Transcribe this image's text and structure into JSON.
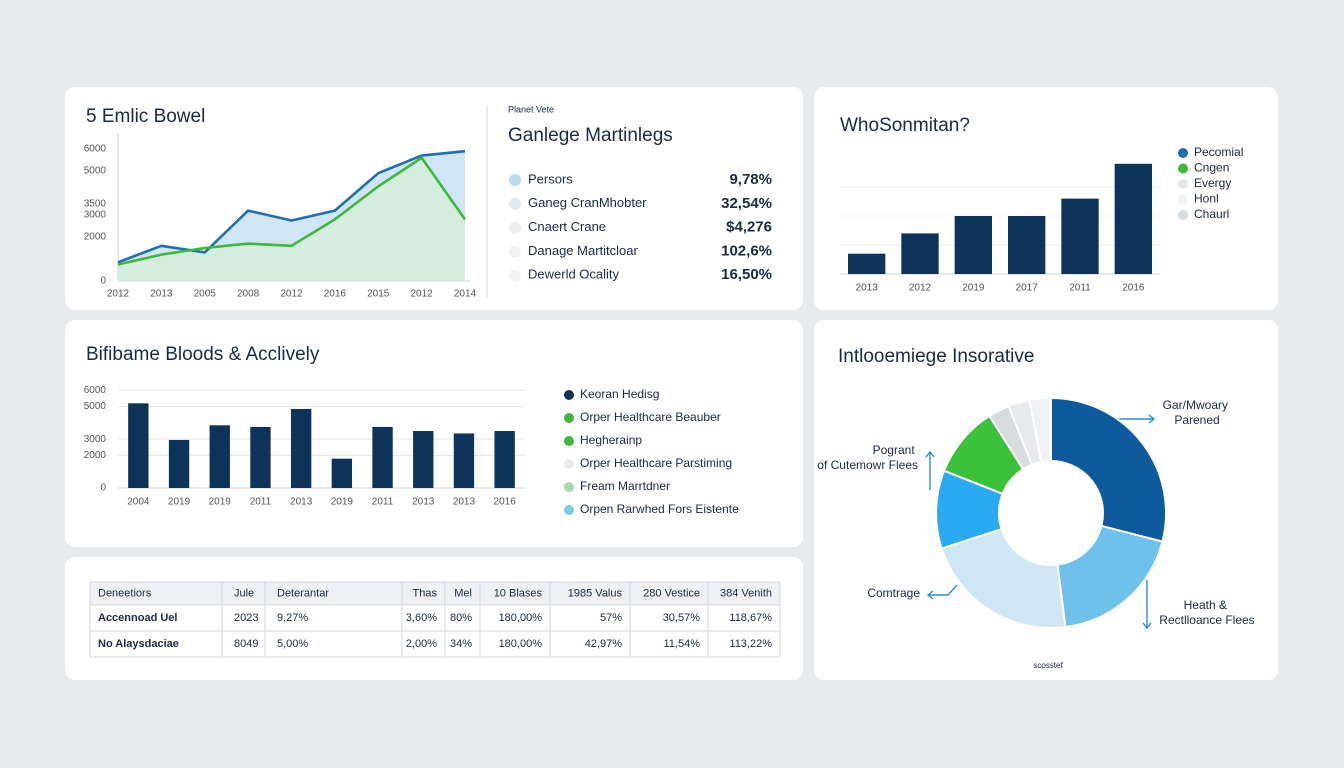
{
  "chart_data": [
    {
      "type": "line",
      "title": "5 Emlic Bowel",
      "categories": [
        "2012",
        "2013",
        "2005",
        "2008",
        "2012",
        "2016",
        "2015",
        "2012",
        "2014"
      ],
      "series": [
        {
          "color": "#1f6fb2",
          "values": [
            850,
            1600,
            1300,
            3200,
            2750,
            3200,
            4900,
            5700,
            5900
          ]
        },
        {
          "color": "#3cb83a",
          "values": [
            750,
            1200,
            1500,
            1700,
            1600,
            2800,
            4300,
            5600,
            2800
          ]
        }
      ],
      "ylim": [
        0,
        6500
      ],
      "yticks": [
        0,
        2000,
        3000,
        3500,
        5000,
        6000
      ],
      "grid": false
    },
    {
      "type": "bar",
      "title": "WhoSonmitan?",
      "categories": [
        "2013",
        "2012",
        "2019",
        "2017",
        "2011",
        "2016"
      ],
      "values": [
        21,
        42,
        60,
        60,
        78,
        114
      ],
      "color": "#0d3358",
      "ylim": [
        0,
        120
      ],
      "legend": [
        {
          "name": "Pecomial",
          "color": "#1f6fb2"
        },
        {
          "name": "Cngen",
          "color": "#3cb83a"
        },
        {
          "name": "Evergy",
          "color": "#e6e9ec"
        },
        {
          "name": "Honl",
          "color": "#f2f3f5"
        },
        {
          "name": "Chaurl",
          "color": "#d6dde3"
        }
      ]
    },
    {
      "type": "bar",
      "title": "Bifibame Bloods & Acclively",
      "categories": [
        "2004",
        "2019",
        "2019",
        "2011",
        "2013",
        "2019",
        "2011",
        "2013",
        "2013",
        "2016"
      ],
      "values": [
        5200,
        2950,
        3850,
        3750,
        4850,
        1800,
        3750,
        3500,
        3350,
        3500
      ],
      "color": "#0d3358",
      "ylim": [
        0,
        7000
      ],
      "yticks": [
        0,
        2000,
        3000,
        5000,
        6000
      ],
      "grid": true,
      "legend": [
        {
          "name": "Keoran Hedisg",
          "color": "#0d3358"
        },
        {
          "name": "Orper Healthcare Beauber",
          "color": "#3cb83a"
        },
        {
          "name": "Hegherainp",
          "color": "#3cb83a"
        },
        {
          "name": "Orper Healthcare Parstiming",
          "color": "#e9ecef"
        },
        {
          "name": "Fream Marrtdner",
          "color": "#a8d8b0"
        },
        {
          "name": "Orpen Rarwhed Fors Eistente",
          "color": "#7ccbe6"
        }
      ]
    },
    {
      "type": "pie",
      "title": "Intlooemiege Insorative",
      "values": [
        29,
        19,
        22,
        11,
        10,
        3,
        3,
        3
      ],
      "colors": [
        "#0e5a9c",
        "#6ec1ea",
        "#cfe7f4",
        "#29aaf1",
        "#3cc13b",
        "#d9dcdf",
        "#e7e9ec",
        "#f0f2f4"
      ],
      "annotations": [
        "Gar/Mwoary Parened",
        "Pogrant of Cutemowr Flees",
        "Comtrage",
        "Heath & Rectlloance Flees",
        "scosstef"
      ]
    }
  ],
  "metrics": {
    "caption": "Planet Vete",
    "title": "Ganlege Martinlegs",
    "rows": [
      [
        "Persors",
        "9,78%"
      ],
      [
        "Ganeg CranMhobter",
        "32,54%"
      ],
      [
        "Cnaert Crane",
        "$4,276"
      ],
      [
        "Danage Martitcloar",
        "102,6%"
      ],
      [
        "Dewerld Ocality",
        "16,50%"
      ]
    ]
  },
  "table": {
    "header": [
      "Deneetiors",
      "Jule",
      "Deterantar",
      "Thas",
      "Mel",
      "10 Blases",
      "1985 Valus",
      "280 Vestice",
      "384 Venith"
    ],
    "rows": [
      [
        "Accennoad Uel",
        "2023",
        "9,27%",
        "3,60%",
        "80%",
        "180,00%",
        "57%",
        "30,57%",
        "118,67%"
      ],
      [
        "No Alaysdaciae",
        "8049",
        "5,00%",
        "2,00%",
        "34%",
        "180,00%",
        "42,97%",
        "11,54%",
        "113,22%"
      ]
    ]
  }
}
